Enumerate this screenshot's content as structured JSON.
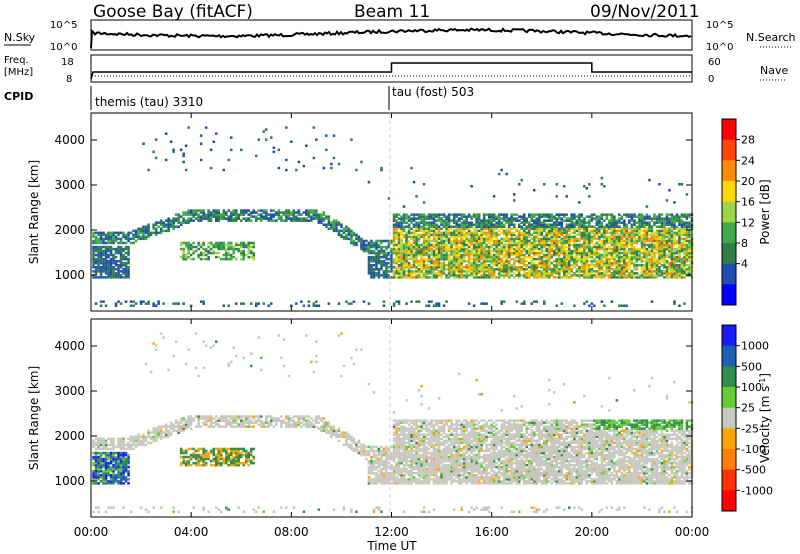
{
  "header": {
    "station": "Goose Bay (fitACF)",
    "beam": "Beam 11",
    "date": "09/Nov/2011"
  },
  "side_labels": {
    "nsky": "N.Sky",
    "freq_line1": "Freq.",
    "freq_line2": "[MHz]",
    "cpid": "CPID",
    "nsearch": "N.Search",
    "nave": "Nave"
  },
  "small_axes": {
    "nsky_ticks": [
      "10^5",
      "10^0"
    ],
    "nsearch_ticks": [
      "10^5",
      "10^0"
    ],
    "freq_ticks": [
      "18",
      "8"
    ],
    "nave_ticks": [
      "60",
      "0"
    ]
  },
  "cpid_labels": [
    "themis (tau) 3310",
    "tau (fost) 503"
  ],
  "chart_data": [
    {
      "type": "heatmap",
      "title": "",
      "xlabel": "Time UT",
      "ylabel": "Slant Range [km]",
      "x_ticks": [
        "00:00",
        "04:00",
        "08:00",
        "12:00",
        "16:00",
        "20:00",
        "00:00"
      ],
      "y_ticks": [
        1000,
        2000,
        3000,
        4000
      ],
      "ylim": [
        200,
        4600
      ],
      "colorbar": {
        "label": "Power [dB]",
        "ticks": [
          "4",
          "8",
          "12",
          "16",
          "20",
          "24",
          "28"
        ],
        "colors": [
          "#0000ff",
          "#1f4fb0",
          "#2e7d4a",
          "#3fa84a",
          "#9fd34a",
          "#ffd700",
          "#ff8c00",
          "#ff4500",
          "#ff0000"
        ]
      }
    },
    {
      "type": "heatmap",
      "title": "",
      "xlabel": "Time UT",
      "ylabel": "Slant Range [km]",
      "x_ticks": [
        "00:00",
        "04:00",
        "08:00",
        "12:00",
        "16:00",
        "20:00",
        "00:00"
      ],
      "y_ticks": [
        1000,
        2000,
        3000,
        4000
      ],
      "ylim": [
        200,
        4600
      ],
      "colorbar": {
        "label": "Velocity [m s^-1]",
        "ticks": [
          "1000",
          "500",
          "100",
          "25",
          "-25",
          "-100",
          "-500",
          "-1000"
        ],
        "colors": [
          "#1a1aff",
          "#1e5fb4",
          "#2f8f4f",
          "#66cc33",
          "#c8c8c0",
          "#ffa500",
          "#ff7f00",
          "#ff3300",
          "#ff0000"
        ]
      }
    }
  ],
  "colors": {
    "ground_scatter": "#c0c0b8",
    "axis": "#000000"
  }
}
